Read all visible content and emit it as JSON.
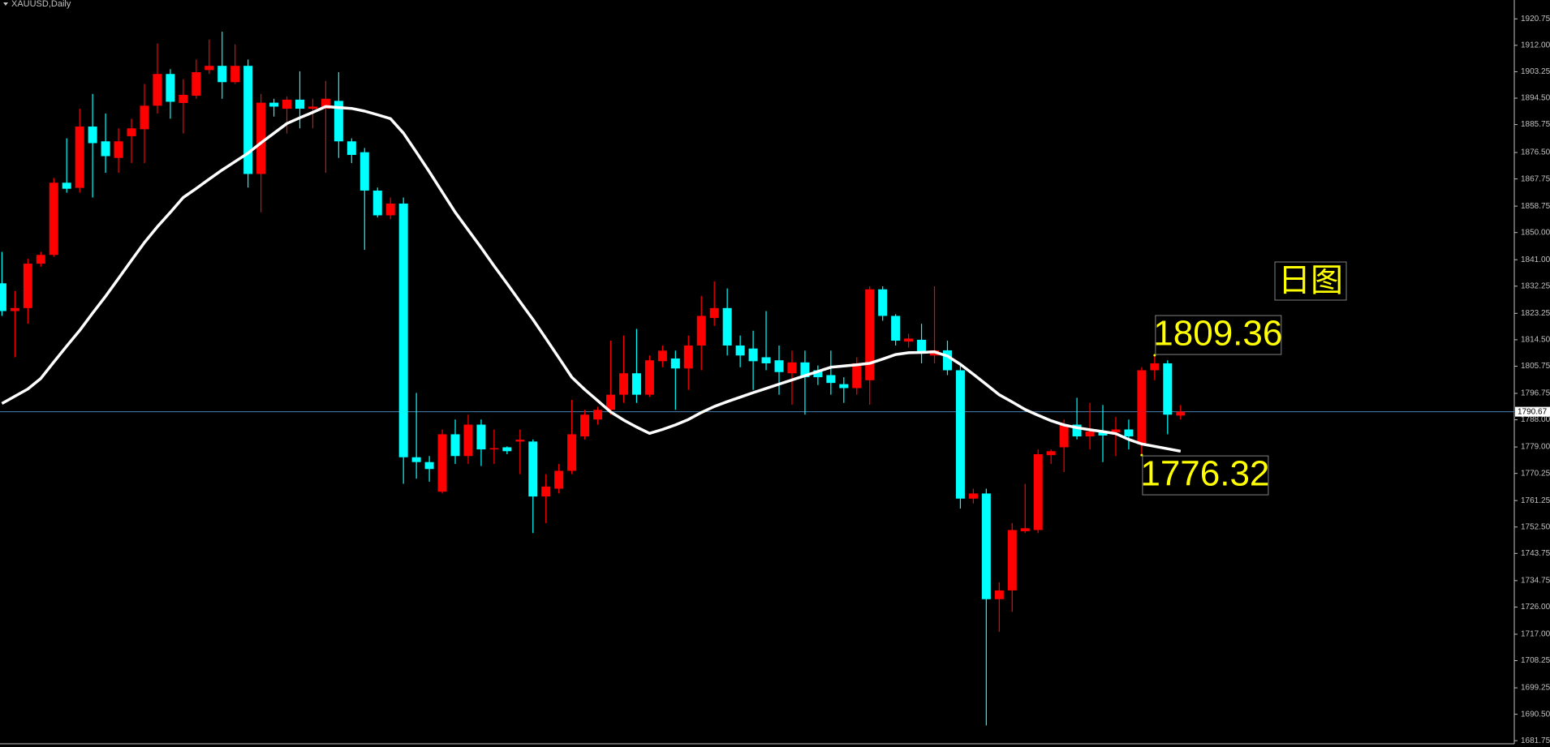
{
  "chart_data": {
    "type": "candlestick",
    "title": "XAUUSD,Daily",
    "annotation": "日图",
    "up_color": "#ff0000",
    "down_color": "#00ffff",
    "open": [
      1833.2,
      1824.0,
      1825.0,
      1839.7,
      1842.6,
      1866.5,
      1864.8,
      1885.1,
      1880.2,
      1874.7,
      1881.9,
      1884.2,
      1892.0,
      1902.5,
      1892.9,
      1895.3,
      1903.8,
      1905.2,
      1899.8,
      1905.2,
      1869.4,
      1893.0,
      1891.0,
      1894.0,
      1891.0,
      1891.0,
      1893.6,
      1880.2,
      1876.6,
      1863.9,
      1855.7,
      1859.6,
      1775.6,
      1774.0,
      1764.2,
      1783.2,
      1776.0,
      1786.4,
      1778.2,
      1778.9,
      1780.8,
      1780.8,
      1762.6,
      1765.2,
      1771.1,
      1782.5,
      1788.1,
      1791.3,
      1796.3,
      1803.4,
      1796.3,
      1807.4,
      1808.3,
      1805.0,
      1812.6,
      1821.7,
      1825.0,
      1812.6,
      1811.6,
      1808.7,
      1807.7,
      1803.4,
      1807.0,
      1804.4,
      1802.8,
      1799.8,
      1798.5,
      1801.1,
      1831.2,
      1822.4,
      1813.9,
      1814.5,
      1809.3,
      1811.0,
      1804.4,
      1761.9,
      1763.6,
      1728.6,
      1731.5,
      1751.1,
      1751.5,
      1776.3,
      1778.9,
      1786.4,
      1782.5,
      1784.1,
      1783.8,
      1784.8,
      1779.9,
      1804.4,
      1806.7,
      1789.4
    ],
    "high": [
      1843.6,
      1830.6,
      1841.3,
      1843.6,
      1868.1,
      1881.2,
      1891.0,
      1895.9,
      1889.4,
      1884.5,
      1887.7,
      1899.2,
      1912.6,
      1904.1,
      1900.8,
      1907.3,
      1913.9,
      1916.5,
      1912.3,
      1907.3,
      1895.9,
      1894.3,
      1895.0,
      1903.4,
      1894.3,
      1900.2,
      1903.1,
      1881.2,
      1878.0,
      1864.9,
      1861.6,
      1861.6,
      1796.9,
      1776.0,
      1784.8,
      1788.1,
      1789.7,
      1788.1,
      1784.8,
      1779.2,
      1784.8,
      1781.5,
      1770.0,
      1773.4,
      1794.6,
      1791.3,
      1792.3,
      1814.2,
      1815.9,
      1818.1,
      1809.3,
      1812.6,
      1810.9,
      1815.9,
      1829.0,
      1833.8,
      1831.5,
      1815.9,
      1817.5,
      1824.0,
      1812.6,
      1810.9,
      1810.9,
      1806.0,
      1810.9,
      1802.1,
      1808.7,
      1832.2,
      1832.2,
      1823.0,
      1816.5,
      1819.8,
      1832.2,
      1814.2,
      1806.0,
      1765.2,
      1765.2,
      1734.2,
      1753.8,
      1766.8,
      1778.2,
      1778.2,
      1788.1,
      1795.3,
      1793.6,
      1792.9,
      1789.0,
      1788.1,
      1805.4,
      1809.36,
      1807.7,
      1792.9
    ],
    "low": [
      1822.4,
      1808.7,
      1819.8,
      1838.7,
      1842.0,
      1863.2,
      1863.2,
      1861.6,
      1869.8,
      1869.8,
      1873.0,
      1873.0,
      1889.4,
      1887.7,
      1882.8,
      1894.3,
      1902.5,
      1894.3,
      1899.2,
      1864.9,
      1856.7,
      1888.4,
      1882.8,
      1884.5,
      1884.5,
      1869.8,
      1874.7,
      1873.0,
      1844.3,
      1855.0,
      1854.4,
      1766.8,
      1768.5,
      1767.5,
      1763.6,
      1773.4,
      1773.4,
      1772.7,
      1773.4,
      1776.6,
      1770.0,
      1750.5,
      1753.8,
      1763.6,
      1770.0,
      1781.5,
      1786.4,
      1789.7,
      1793.6,
      1793.6,
      1795.6,
      1805.4,
      1791.3,
      1797.9,
      1804.4,
      1819.1,
      1809.3,
      1805.4,
      1797.9,
      1804.4,
      1796.3,
      1793.0,
      1789.7,
      1799.5,
      1796.3,
      1793.6,
      1796.3,
      1793.0,
      1820.8,
      1812.6,
      1811.9,
      1806.7,
      1806.7,
      1802.8,
      1758.6,
      1760.3,
      1686.8,
      1717.8,
      1724.4,
      1750.5,
      1750.5,
      1773.4,
      1770.7,
      1781.5,
      1778.2,
      1774.0,
      1776.0,
      1778.2,
      1776.32,
      1801.1,
      1783.2,
      1788.1
    ],
    "close": [
      1824.0,
      1825.0,
      1839.7,
      1842.6,
      1866.5,
      1864.5,
      1885.1,
      1879.6,
      1875.3,
      1880.2,
      1884.5,
      1892.0,
      1902.5,
      1893.3,
      1895.6,
      1903.1,
      1905.2,
      1899.8,
      1905.2,
      1869.4,
      1893.0,
      1891.7,
      1894.0,
      1891.0,
      1891.7,
      1894.3,
      1880.2,
      1875.7,
      1863.9,
      1855.7,
      1859.6,
      1775.6,
      1774.0,
      1771.7,
      1783.2,
      1776.0,
      1786.4,
      1778.2,
      1778.6,
      1777.6,
      1781.4,
      1762.6,
      1765.9,
      1771.1,
      1783.2,
      1789.7,
      1791.3,
      1796.3,
      1803.4,
      1796.3,
      1807.7,
      1810.9,
      1805.0,
      1812.6,
      1822.4,
      1825.0,
      1812.6,
      1809.3,
      1807.4,
      1806.7,
      1803.8,
      1807.0,
      1802.1,
      1802.1,
      1800.2,
      1798.5,
      1806.7,
      1831.2,
      1822.4,
      1814.2,
      1814.9,
      1810.0,
      1811.0,
      1804.4,
      1761.9,
      1763.6,
      1728.6,
      1731.5,
      1751.5,
      1752.1,
      1776.6,
      1777.6,
      1786.4,
      1782.5,
      1784.1,
      1782.8,
      1784.8,
      1782.5,
      1804.4,
      1806.7,
      1789.7,
      1790.67
    ],
    "line": {
      "color": "#ffffff",
      "values": [
        1793.4,
        1795.8,
        1798.2,
        1801.7,
        1807.1,
        1812.4,
        1817.6,
        1823.3,
        1828.9,
        1834.8,
        1840.8,
        1846.7,
        1851.9,
        1856.7,
        1861.6,
        1864.6,
        1867.7,
        1870.7,
        1873.5,
        1876.3,
        1879.7,
        1882.9,
        1886.1,
        1888.0,
        1889.8,
        1891.7,
        1891.4,
        1891.1,
        1890.2,
        1889.0,
        1887.7,
        1882.9,
        1876.6,
        1870.1,
        1863.4,
        1856.7,
        1850.8,
        1845.0,
        1838.9,
        1833.1,
        1827.1,
        1821.2,
        1814.9,
        1808.5,
        1802.1,
        1798.0,
        1794.3,
        1790.6,
        1787.9,
        1785.6,
        1783.5,
        1784.8,
        1786.3,
        1788.1,
        1790.4,
        1792.4,
        1794.0,
        1795.5,
        1797.0,
        1798.4,
        1799.8,
        1801.2,
        1802.6,
        1804.0,
        1805.4,
        1805.8,
        1806.2,
        1806.7,
        1808.1,
        1809.6,
        1810.2,
        1810.3,
        1810.5,
        1809.1,
        1806.4,
        1803.1,
        1799.7,
        1796.3,
        1793.9,
        1791.4,
        1789.5,
        1787.7,
        1786.3,
        1785.4,
        1784.7,
        1784.1,
        1783.4,
        1781.5,
        1780.0,
        1779.2,
        1778.4,
        1777.6
      ]
    },
    "current_price": 1790.67,
    "price_labels": [
      1809.36,
      1776.32
    ],
    "label_color": "#ffff00",
    "ylim": [
      1681,
      1927
    ],
    "yticks": [
      1920.75,
      {
        "value": 1912,
        "label": "1912.00"
      },
      1903.25,
      {
        "value": 1894.5,
        "label": "1894.50"
      },
      1885.75,
      {
        "value": 1876.5,
        "label": "1876.50"
      },
      1867.75,
      1858.75,
      {
        "value": 1850,
        "label": "1850.00"
      },
      {
        "value": 1841,
        "label": "1841.00"
      },
      1832.25,
      1823.25,
      {
        "value": 1814.5,
        "label": "1814.50"
      },
      1805.75,
      1796.75,
      {
        "value": 1788,
        "label": "1788.00"
      },
      {
        "value": 1779,
        "label": "1779.00"
      },
      1770.25,
      1761.25,
      {
        "value": 1752.5,
        "label": "1752.50"
      },
      1743.75,
      1734.75,
      {
        "value": 1726,
        "label": "1726.00"
      },
      {
        "value": 1717,
        "label": "1717.00"
      },
      1708.25,
      1699.25,
      {
        "value": 1690.5,
        "label": "1690.50"
      },
      1681.75
    ]
  }
}
